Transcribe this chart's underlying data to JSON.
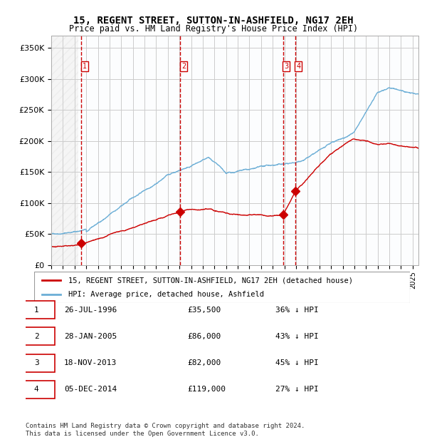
{
  "title": "15, REGENT STREET, SUTTON-IN-ASHFIELD, NG17 2EH",
  "subtitle": "Price paid vs. HM Land Registry's House Price Index (HPI)",
  "xlim": [
    1994.0,
    2025.5
  ],
  "ylim": [
    0,
    370000
  ],
  "yticks": [
    0,
    50000,
    100000,
    150000,
    200000,
    250000,
    300000,
    350000
  ],
  "sale_dates_decimal": [
    1996.565,
    2005.075,
    2013.885,
    2014.922
  ],
  "sale_prices": [
    35500,
    86000,
    82000,
    119000
  ],
  "sale_labels": [
    "1",
    "2",
    "3",
    "4"
  ],
  "vline_dates": [
    1996.565,
    2005.075,
    2013.885,
    2014.922
  ],
  "hpi_color": "#6baed6",
  "price_color": "#cc0000",
  "legend_entries": [
    "15, REGENT STREET, SUTTON-IN-ASHFIELD, NG17 2EH (detached house)",
    "HPI: Average price, detached house, Ashfield"
  ],
  "table_rows": [
    [
      "1",
      "26-JUL-1996",
      "£35,500",
      "36% ↓ HPI"
    ],
    [
      "2",
      "28-JAN-2005",
      "£86,000",
      "43% ↓ HPI"
    ],
    [
      "3",
      "18-NOV-2013",
      "£82,000",
      "45% ↓ HPI"
    ],
    [
      "4",
      "05-DEC-2014",
      "£119,000",
      "27% ↓ HPI"
    ]
  ],
  "footer": "Contains HM Land Registry data © Crown copyright and database right 2024.\nThis data is licensed under the Open Government Licence v3.0.",
  "background_hatch_color": "#e8f0f8",
  "grid_color": "#cccccc",
  "hpi_line_color": "#aac4e0",
  "price_line_color": "#cc0000"
}
